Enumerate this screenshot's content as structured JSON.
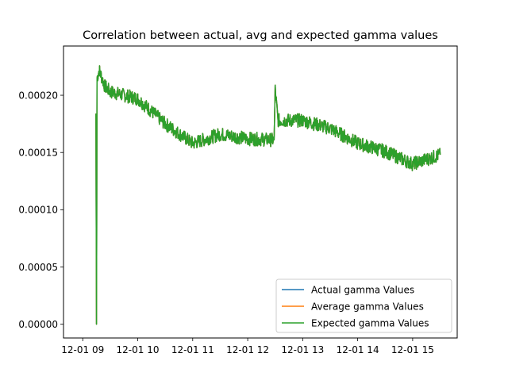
{
  "chart_data": {
    "type": "line",
    "title": "Correlation between actual, avg and expected gamma values",
    "xlabel": "",
    "ylabel": "",
    "x_ticks": [
      "12-01 09",
      "12-01 10",
      "12-01 11",
      "12-01 12",
      "12-01 13",
      "12-01 14",
      "12-01 15"
    ],
    "y_ticks": [
      "0.00000",
      "0.00005",
      "0.00010",
      "0.00015",
      "0.00020"
    ],
    "xlim_hours": [
      8.65,
      15.81
    ],
    "ylim": [
      -1.2e-05,
      0.000243
    ],
    "grid": false,
    "legend_position": "lower right",
    "series": [
      {
        "name": "Actual gamma Values",
        "color": "#1f77b4",
        "x_hours": [
          9.24,
          9.25,
          9.26,
          9.3,
          9.4,
          9.5,
          10.0,
          10.5,
          11.0,
          11.5,
          12.0,
          12.48,
          12.5,
          12.55,
          13.0,
          13.5,
          14.0,
          14.5,
          15.0,
          15.5
        ],
        "values": [
          0.000184,
          0.0,
          0.000215,
          0.000222,
          0.000208,
          0.000203,
          0.000197,
          0.000175,
          0.000158,
          0.000166,
          0.000162,
          0.000161,
          0.000205,
          0.000178,
          0.000178,
          0.000171,
          0.000158,
          0.000151,
          0.00014,
          0.000148
        ]
      },
      {
        "name": "Average gamma Values",
        "color": "#ff7f0e",
        "x_hours": [
          9.24,
          9.25,
          9.26,
          9.3,
          9.4,
          9.5,
          10.0,
          10.5,
          11.0,
          11.5,
          12.0,
          12.48,
          12.5,
          12.55,
          13.0,
          13.5,
          14.0,
          14.5,
          15.0,
          15.5
        ],
        "values": [
          0.000184,
          0.0,
          0.000215,
          0.000222,
          0.000208,
          0.000203,
          0.000197,
          0.000175,
          0.000158,
          0.000166,
          0.000162,
          0.000161,
          0.000205,
          0.000178,
          0.000178,
          0.000171,
          0.000158,
          0.000151,
          0.00014,
          0.000148
        ]
      },
      {
        "name": "Expected gamma Values",
        "color": "#2ca02c",
        "x_hours": [
          9.24,
          9.25,
          9.26,
          9.3,
          9.4,
          9.5,
          10.0,
          10.5,
          11.0,
          11.5,
          12.0,
          12.48,
          12.5,
          12.55,
          13.0,
          13.5,
          14.0,
          14.5,
          15.0,
          15.5
        ],
        "values": [
          0.000184,
          0.0,
          0.000215,
          0.000222,
          0.000208,
          0.000203,
          0.000197,
          0.000175,
          0.000158,
          0.000166,
          0.000162,
          0.000161,
          0.000205,
          0.000178,
          0.000178,
          0.000171,
          0.000158,
          0.000151,
          0.00014,
          0.000148
        ]
      }
    ]
  }
}
